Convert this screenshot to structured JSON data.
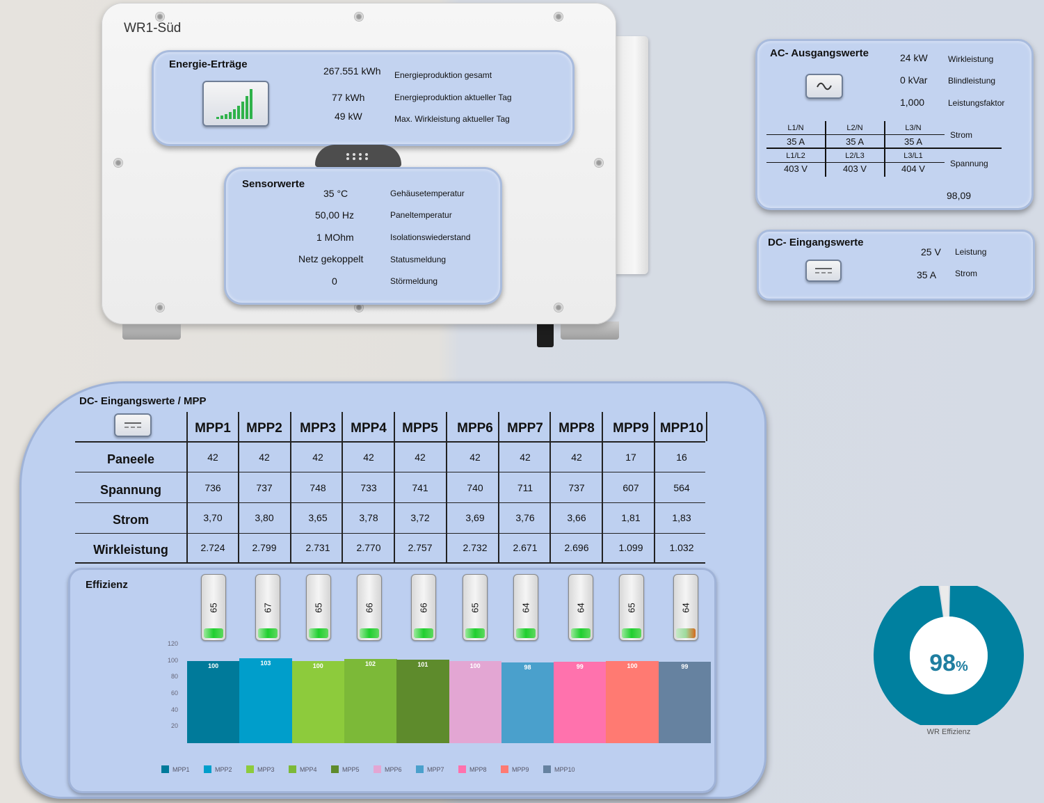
{
  "device": {
    "title": "WR1-Süd"
  },
  "energie": {
    "title": "Energie-Erträge",
    "rows": [
      {
        "value": "267.551 kWh",
        "label": "Energieproduktion gesamt"
      },
      {
        "value": "77 kWh",
        "label": "Energieproduktion aktueller Tag"
      },
      {
        "value": "49 kW",
        "label": "Max. Wirkleistung aktueller Tag"
      }
    ],
    "icon": "signal-bars-icon"
  },
  "sensor": {
    "title": "Sensorwerte",
    "rows": [
      {
        "value": "35 °C",
        "label": "Gehäusetemperatur"
      },
      {
        "value": "50,00 Hz",
        "label": "Paneltemperatur"
      },
      {
        "value": "1 MOhm",
        "label": "Isolationswiederstand"
      },
      {
        "value": "Netz gekoppelt",
        "label": "Statusmeldung"
      },
      {
        "value": "0",
        "label": "Störmeldung"
      }
    ]
  },
  "ac": {
    "title": "AC- Ausgangswerte",
    "icon": "sine-wave-icon",
    "rows": [
      {
        "value": "24 kW",
        "label": "Wirkleistung"
      },
      {
        "value": "0 kVar",
        "label": "Blindleistung"
      },
      {
        "value": "1,000",
        "label": "Leistungsfaktor"
      }
    ],
    "phase_headers": [
      "L1/N",
      "L2/N",
      "L3/N"
    ],
    "currents": [
      "35 A",
      "35 A",
      "35 A"
    ],
    "strom_label": "Strom",
    "line_headers": [
      "L1/L2",
      "L2/L3",
      "L3/L1"
    ],
    "voltages": [
      "403 V",
      "403 V",
      "404 V"
    ],
    "spannung_label": "Spannung",
    "footer_value": "98,09"
  },
  "dc": {
    "title": "DC- Eingangswerte",
    "icon": "dc-symbol-icon",
    "rows": [
      {
        "value": "25 V",
        "label": "Leistung"
      },
      {
        "value": "35 A",
        "label": "Strom"
      }
    ]
  },
  "mpp": {
    "title": "DC- Eingangswerte / MPP",
    "headers": [
      "MPP1",
      "MPP2",
      "MPP3",
      "MPP4",
      "MPP5",
      "MPP6",
      "MPP7",
      "MPP8",
      "MPP9",
      "MPP10"
    ],
    "row_labels": [
      "Paneele",
      "Spannung",
      "Strom",
      "Wirkleistung"
    ],
    "rows": [
      [
        "42",
        "42",
        "42",
        "42",
        "42",
        "42",
        "42",
        "42",
        "17",
        "16"
      ],
      [
        "736",
        "737",
        "748",
        "733",
        "741",
        "740",
        "711",
        "737",
        "607",
        "564"
      ],
      [
        "3,70",
        "3,80",
        "3,65",
        "3,78",
        "3,72",
        "3,69",
        "3,76",
        "3,66",
        "1,81",
        "1,83"
      ],
      [
        "2.724",
        "2.799",
        "2.731",
        "2.770",
        "2.757",
        "2.732",
        "2.671",
        "2.696",
        "1.099",
        "1.032"
      ]
    ]
  },
  "effizienz": {
    "title": "Effizienz",
    "gauges": [
      "65",
      "67",
      "65",
      "66",
      "66",
      "65",
      "64",
      "64",
      "65",
      "64"
    ]
  },
  "chart_data": {
    "type": "bar",
    "categories": [
      "MPP1",
      "MPP2",
      "MPP3",
      "MPP4",
      "MPP5",
      "MPP6",
      "MPP7",
      "MPP8",
      "MPP9",
      "MPP10"
    ],
    "values": [
      100,
      103,
      100,
      102,
      101,
      100,
      98,
      99,
      100,
      99
    ],
    "ylim": [
      0,
      120
    ],
    "yticks": [
      20,
      40,
      60,
      80,
      100,
      120
    ],
    "colors": [
      "#007a9a",
      "#009ecb",
      "#8dcb3c",
      "#7cb938",
      "#5e8b2c",
      "#e3a6d3",
      "#4aa0cc",
      "#ff72ad",
      "#ff7a72",
      "#6682a0"
    ],
    "legend": [
      "MPP1",
      "MPP2",
      "MPP3",
      "MPP4",
      "MPP5",
      "MPP6",
      "MPP7",
      "MPP8",
      "MPP9",
      "MPP10"
    ],
    "legend_position": "bottom"
  },
  "wr_effizienz": {
    "value": 98,
    "display": "98",
    "unit": "%",
    "label": "WR Effizienz",
    "colors": {
      "fill": "#00809f",
      "rest": "#ebebeb"
    }
  }
}
